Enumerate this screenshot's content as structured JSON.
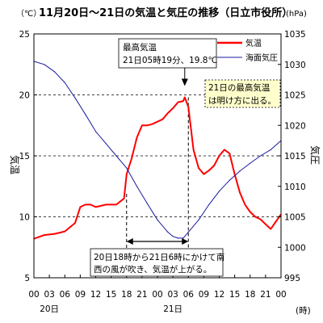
{
  "chart_data": {
    "type": "line",
    "title": "11月20日～21日の気温と気圧の推移（日立市役所）",
    "left_axis": {
      "label": "気温",
      "unit": "（℃）",
      "ylim": [
        5,
        25
      ],
      "ticks": [
        "5",
        "10",
        "15",
        "20",
        "25"
      ]
    },
    "right_axis": {
      "label": "気圧",
      "unit": "(hPa)",
      "ylim": [
        995,
        1035
      ],
      "ticks": [
        "995",
        "1000",
        "1005",
        "1010",
        "1015",
        "1020",
        "1025",
        "1030",
        "1035"
      ]
    },
    "x_axis": {
      "unit": "(時)",
      "tick_labels": [
        "00",
        "03",
        "06",
        "09",
        "12",
        "15",
        "18",
        "21",
        "00",
        "03",
        "06",
        "09",
        "12",
        "15",
        "18",
        "21",
        "00"
      ],
      "day_labels": [
        {
          "label": "20日",
          "hour": 3
        },
        {
          "label": "21日",
          "hour": 27
        }
      ],
      "range_hours": [
        0,
        48
      ]
    },
    "grid": "dashed horizontal",
    "legend_position": "top-right",
    "series": [
      {
        "name": "気温",
        "color": "#ff0000",
        "axis": "left",
        "x_hours": [
          0,
          2,
          4,
          6,
          8,
          9,
          10,
          11,
          12,
          14,
          16,
          17.5,
          18,
          19,
          20,
          21,
          22,
          23,
          24,
          25,
          26,
          27,
          28,
          29,
          29.3,
          30,
          31,
          32,
          33,
          34,
          35,
          36,
          37,
          38,
          39,
          40,
          41,
          42,
          43,
          44,
          45,
          46,
          47,
          48
        ],
        "values": [
          8.2,
          8.5,
          8.6,
          8.8,
          9.5,
          10.8,
          11.0,
          11.0,
          10.8,
          11.0,
          11.0,
          11.5,
          13.5,
          14.8,
          16.5,
          17.5,
          17.5,
          17.6,
          17.8,
          18.0,
          18.5,
          18.9,
          19.4,
          19.5,
          19.8,
          19.0,
          15.5,
          14.0,
          13.5,
          13.8,
          14.2,
          15.0,
          15.5,
          15.2,
          13.5,
          12.0,
          11.0,
          10.4,
          10.0,
          9.8,
          9.4,
          9.0,
          9.6,
          10.2
        ]
      },
      {
        "name": "海面気圧",
        "color": "#1a1aa0",
        "axis": "right",
        "x_hours": [
          0,
          2,
          4,
          6,
          8,
          10,
          12,
          14,
          16,
          18,
          20,
          22,
          24,
          26,
          27,
          28,
          29,
          30,
          32,
          34,
          36,
          38,
          40,
          42,
          44,
          46,
          48
        ],
        "values": [
          1030.5,
          1030.0,
          1028.8,
          1027.0,
          1024.5,
          1021.8,
          1019.0,
          1017.0,
          1015.0,
          1013.0,
          1010.0,
          1007.2,
          1004.5,
          1002.5,
          1001.8,
          1001.5,
          1001.5,
          1002.5,
          1004.5,
          1007.0,
          1009.2,
          1011.0,
          1012.5,
          1013.8,
          1015.0,
          1016.0,
          1017.5
        ]
      }
    ],
    "annotations": [
      {
        "id": "max",
        "lines": [
          "最高気温",
          "21日05時19分、19.8℃"
        ],
        "target": {
          "hour": 29.3,
          "value": 19.8
        }
      },
      {
        "id": "note",
        "lines": [
          "21日の最高気温",
          "は明け方に出る。"
        ],
        "background": "#ffffcc"
      },
      {
        "id": "wind",
        "lines": [
          "20日18時から21日6時にかけて南",
          "西の風が吹き、気温が上がる。"
        ],
        "span_hours": [
          18,
          30
        ]
      }
    ]
  }
}
